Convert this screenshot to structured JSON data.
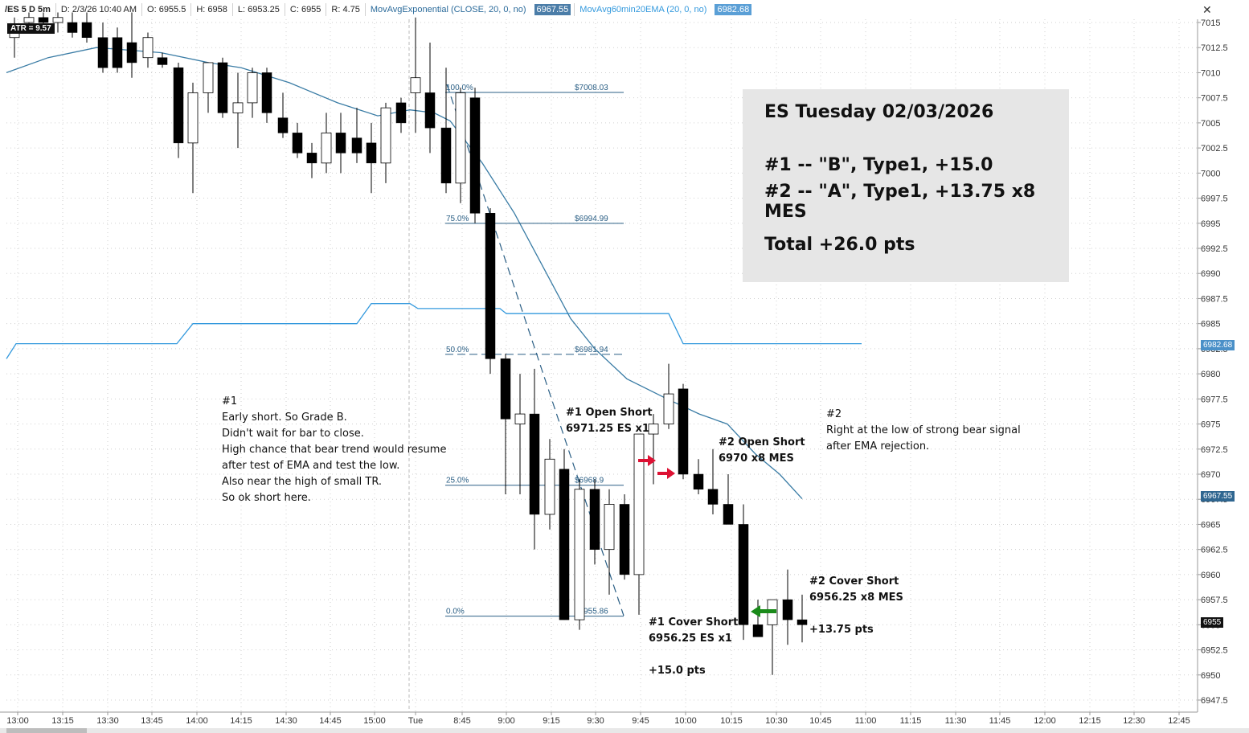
{
  "header": {
    "symbol": "/ES 5 D 5m",
    "date": "D: 2/3/26 10:40 AM",
    "open": "O: 6955.5",
    "high": "H: 6958",
    "low": "L: 6953.25",
    "close": "C: 6955",
    "range": "R: 4.75",
    "ema1": "MovAvgExponential (CLOSE, 20, 0, no)",
    "ema1_value": "6967.55",
    "ema2": "MovAvg60min20EMA (20, 0, no)",
    "ema2_value": "6982.68",
    "close_icon": "close-x-icon"
  },
  "atr_label": "ATR = 9.57",
  "info_box": {
    "title": "ES Tuesday 02/03/2026",
    "line1": "#1 -- \"B\", Type1, +15.0",
    "line2": "#2 -- \"A\", Type1, +13.75 x8 MES",
    "total": "Total +26.0 pts"
  },
  "notes": {
    "n1_lines": [
      "#1",
      "Early short. So Grade B.",
      "Didn't wait for bar to close.",
      "High chance that bear trend would resume",
      "after test of EMA and test the low.",
      "Also near the high of small TR.",
      "So ok short here."
    ],
    "n2_lines": [
      "#2",
      "Right at the low of strong bear signal",
      "after EMA rejection."
    ],
    "open1": [
      "#1 Open Short",
      "6971.25 ES x1"
    ],
    "open2": [
      "#2 Open Short",
      "6970 x8 MES"
    ],
    "cover1": [
      "#1 Cover Short",
      "6956.25 ES x1"
    ],
    "pts1": "+15.0 pts",
    "cover2": [
      "#2 Cover Short",
      "6956.25 x8 MES"
    ],
    "pts2": "+13.75 pts"
  },
  "price_tags": {
    "ema2": "6982.68",
    "ema1": "6967.55",
    "last": "6955"
  },
  "colors": {
    "up": "#ffffff",
    "down": "#000000",
    "ema1": "#3a7ca5",
    "ema2": "#3399dd",
    "fib": "#2b5f85",
    "entry_arrow": "#dd1133",
    "exit_arrow": "#1a8a1a"
  },
  "chart_data": {
    "type": "candlestick",
    "ylim": [
      6946,
      7016.5
    ],
    "y_ticks": [
      "7015",
      "7012.5",
      "7010",
      "7007.5",
      "7005",
      "7002.5",
      "7000",
      "6997.5",
      "6995",
      "6992.5",
      "6990",
      "6987.5",
      "6985",
      "6982.5",
      "6980",
      "6977.5",
      "6975",
      "6972.5",
      "6970",
      "6967.5",
      "6965",
      "6962.5",
      "6960",
      "6957.5",
      "6955",
      "6952.5",
      "6950",
      "6947.5"
    ],
    "x_labels": [
      "13:00",
      "13:15",
      "13:30",
      "13:45",
      "14:00",
      "14:15",
      "14:30",
      "14:45",
      "15:00",
      "Tue",
      "8:45",
      "9:00",
      "9:15",
      "9:30",
      "9:45",
      "10:00",
      "10:15",
      "10:30",
      "10:45",
      "11:00",
      "11:15",
      "11:30",
      "11:45",
      "12:00",
      "12:15",
      "12:30",
      "12:45"
    ],
    "candles": [
      {
        "o": 7013.5,
        "h": 7015.5,
        "l": 7011.5,
        "c": 7014.5
      },
      {
        "o": 7015,
        "h": 7016,
        "l": 7014,
        "c": 7015.5
      },
      {
        "o": 7015.5,
        "h": 7016,
        "l": 7014.5,
        "c": 7015
      },
      {
        "o": 7015,
        "h": 7016,
        "l": 7014,
        "c": 7015.5
      },
      {
        "o": 7015,
        "h": 7016,
        "l": 7013.5,
        "c": 7014
      },
      {
        "o": 7015,
        "h": 7016,
        "l": 7013,
        "c": 7013.5
      },
      {
        "o": 7013.5,
        "h": 7015,
        "l": 7010,
        "c": 7010.5
      },
      {
        "o": 7013.5,
        "h": 7014.5,
        "l": 7010,
        "c": 7010.5
      },
      {
        "o": 7013,
        "h": 7016,
        "l": 7009.5,
        "c": 7011
      },
      {
        "o": 7011.5,
        "h": 7014,
        "l": 7010.5,
        "c": 7013.5
      },
      {
        "o": 7011.5,
        "h": 7012,
        "l": 7010.5,
        "c": 7010.8
      },
      {
        "o": 7010.5,
        "h": 7011,
        "l": 7001.5,
        "c": 7003
      },
      {
        "o": 7003,
        "h": 7009,
        "l": 6998,
        "c": 7008
      },
      {
        "o": 7008,
        "h": 7011,
        "l": 7006,
        "c": 7011
      },
      {
        "o": 7011,
        "h": 7011.5,
        "l": 7005.5,
        "c": 7006
      },
      {
        "o": 7006,
        "h": 7010,
        "l": 7002.5,
        "c": 7007
      },
      {
        "o": 7007,
        "h": 7010.5,
        "l": 7005.5,
        "c": 7010
      },
      {
        "o": 7010,
        "h": 7010.5,
        "l": 7005,
        "c": 7006
      },
      {
        "o": 7005.5,
        "h": 7008,
        "l": 7003.5,
        "c": 7004
      },
      {
        "o": 7004,
        "h": 7005,
        "l": 7001.5,
        "c": 7002
      },
      {
        "o": 7002,
        "h": 7003,
        "l": 6999.5,
        "c": 7001
      },
      {
        "o": 7001,
        "h": 7006,
        "l": 7000,
        "c": 7004
      },
      {
        "o": 7004,
        "h": 7006,
        "l": 7000,
        "c": 7002
      },
      {
        "o": 7003.5,
        "h": 7006.5,
        "l": 7001,
        "c": 7002
      },
      {
        "o": 7003,
        "h": 7005,
        "l": 6998,
        "c": 7001
      },
      {
        "o": 7001,
        "h": 7007,
        "l": 6999,
        "c": 7006.5
      },
      {
        "o": 7007,
        "h": 7007.5,
        "l": 7004,
        "c": 7005
      },
      {
        "o": 7008,
        "h": 7015.5,
        "l": 7004,
        "c": 7009.5
      },
      {
        "o": 7008,
        "h": 7013,
        "l": 7002,
        "c": 7004.5
      },
      {
        "o": 7004.5,
        "h": 7010.5,
        "l": 6998,
        "c": 6999
      },
      {
        "o": 6999,
        "h": 7008.5,
        "l": 6997,
        "c": 7008
      },
      {
        "o": 7007.5,
        "h": 7008.5,
        "l": 6995,
        "c": 6996
      },
      {
        "o": 6996,
        "h": 6996.5,
        "l": 6980,
        "c": 6981.5
      },
      {
        "o": 6981.5,
        "h": 6982,
        "l": 6968,
        "c": 6975.5
      },
      {
        "o": 6975,
        "h": 6980,
        "l": 6968,
        "c": 6976
      },
      {
        "o": 6976,
        "h": 6980.5,
        "l": 6962.5,
        "c": 6966
      },
      {
        "o": 6966,
        "h": 6973.5,
        "l": 6964.5,
        "c": 6971.5
      },
      {
        "o": 6970.5,
        "h": 6972.5,
        "l": 6955.5,
        "c": 6955.5
      },
      {
        "o": 6955.5,
        "h": 6969.5,
        "l": 6954.5,
        "c": 6968.5
      },
      {
        "o": 6968.5,
        "h": 6969.5,
        "l": 6961,
        "c": 6962.5
      },
      {
        "o": 6962.5,
        "h": 6968.5,
        "l": 6958,
        "c": 6967
      },
      {
        "o": 6967,
        "h": 6968,
        "l": 6959.5,
        "c": 6960
      },
      {
        "o": 6960,
        "h": 6974,
        "l": 6956,
        "c": 6974
      },
      {
        "o": 6974,
        "h": 6976,
        "l": 6969,
        "c": 6975
      },
      {
        "o": 6975,
        "h": 6981,
        "l": 6974.5,
        "c": 6978
      },
      {
        "o": 6978.5,
        "h": 6979,
        "l": 6969.5,
        "c": 6970
      },
      {
        "o": 6970,
        "h": 6971.5,
        "l": 6968,
        "c": 6968.5
      },
      {
        "o": 6968.5,
        "h": 6972.5,
        "l": 6966,
        "c": 6967
      },
      {
        "o": 6967,
        "h": 6970,
        "l": 6965,
        "c": 6965
      },
      {
        "o": 6965,
        "h": 6967,
        "l": 6953.5,
        "c": 6955
      },
      {
        "o": 6955,
        "h": 6957.5,
        "l": 6954,
        "c": 6953.8
      },
      {
        "o": 6955,
        "h": 6957,
        "l": 6950,
        "c": 6957.5
      },
      {
        "o": 6957.5,
        "h": 6960.5,
        "l": 6953,
        "c": 6955.5
      },
      {
        "o": 6955.5,
        "h": 6958,
        "l": 6953.25,
        "c": 6955
      }
    ],
    "candle_x": [
      18,
      36,
      54,
      72,
      90,
      108,
      128,
      146,
      164,
      184,
      202,
      222,
      240,
      259,
      277,
      296,
      314,
      332,
      352,
      370,
      388,
      406,
      424,
      444,
      462,
      480,
      499,
      517,
      535,
      555,
      573,
      591,
      610,
      629,
      647,
      665,
      684,
      702,
      721,
      740,
      758,
      777,
      795,
      813,
      832,
      850,
      869,
      887,
      906,
      925,
      943,
      961,
      980,
      998
    ],
    "ema1": [
      [
        8,
        7010
      ],
      [
        60,
        7011.5
      ],
      [
        120,
        7012.5
      ],
      [
        200,
        7012
      ],
      [
        260,
        7011
      ],
      [
        300,
        7010.5
      ],
      [
        360,
        7009
      ],
      [
        420,
        7007
      ],
      [
        470,
        7005.7
      ],
      [
        510,
        7006.3
      ],
      [
        540,
        7006
      ],
      [
        560,
        7005.2
      ],
      [
        600,
        7001
      ],
      [
        640,
        6996
      ],
      [
        680,
        6990
      ],
      [
        710,
        6985.5
      ],
      [
        740,
        6982.5
      ],
      [
        780,
        6979.5
      ],
      [
        830,
        6977.5
      ],
      [
        870,
        6976
      ],
      [
        905,
        6975
      ],
      [
        940,
        6972
      ],
      [
        970,
        6970
      ],
      [
        998,
        6967.55
      ]
    ],
    "ema2": [
      [
        8,
        6981.5
      ],
      [
        20,
        6983
      ],
      [
        220,
        6983
      ],
      [
        240,
        6985
      ],
      [
        444,
        6985
      ],
      [
        462,
        6987
      ],
      [
        510,
        6987
      ],
      [
        520,
        6986.5
      ],
      [
        622,
        6986.5
      ],
      [
        630,
        6986
      ],
      [
        832,
        6986
      ],
      [
        850,
        6983
      ],
      [
        1072,
        6983
      ]
    ],
    "fib": [
      {
        "pct": "100.0%",
        "price": "$7008.03",
        "y": 7008.03,
        "dashed": false
      },
      {
        "pct": "75.0%",
        "price": "$6994.99",
        "y": 6994.99,
        "dashed": false
      },
      {
        "pct": "50.0%",
        "price": "$6981.94",
        "y": 6981.94,
        "dashed": true
      },
      {
        "pct": "25.0%",
        "price": "$6968.9",
        "y": 6968.9,
        "dashed": false
      },
      {
        "pct": "0.0%",
        "price": "$6955.86",
        "y": 6955.86,
        "dashed": false
      }
    ]
  }
}
